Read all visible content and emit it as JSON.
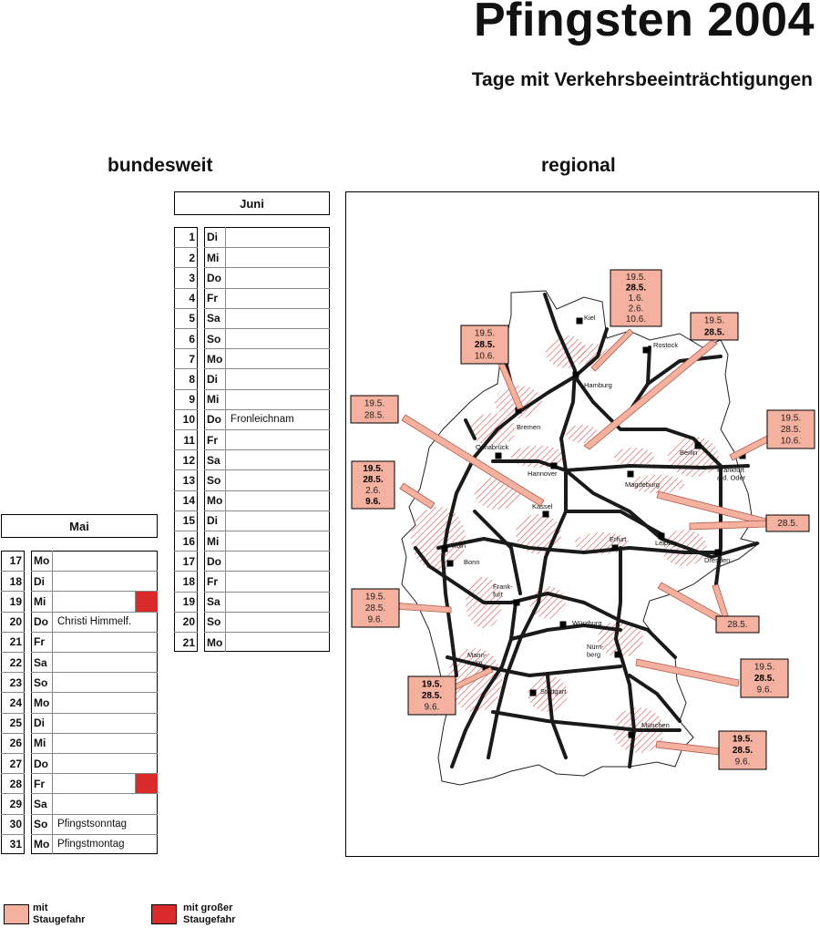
{
  "header": {
    "title": "Pfingsten 2004",
    "subtitle": "Tage mit Verkehrsbeeinträchtigungen"
  },
  "sections": {
    "national": "bundesweit",
    "regional": "regional"
  },
  "colors": {
    "jam_risk": "#f4b19f",
    "high_jam_risk": "#d92b2b",
    "hatch": "#d94a4a"
  },
  "calendar": {
    "june": {
      "month": "Juni",
      "days": [
        {
          "day": "1",
          "wd": "Di",
          "note": "",
          "risk": ""
        },
        {
          "day": "2",
          "wd": "Mi",
          "note": "",
          "risk": ""
        },
        {
          "day": "3",
          "wd": "Do",
          "note": "",
          "risk": ""
        },
        {
          "day": "4",
          "wd": "Fr",
          "note": "",
          "risk": ""
        },
        {
          "day": "5",
          "wd": "Sa",
          "note": "",
          "risk": ""
        },
        {
          "day": "6",
          "wd": "So",
          "note": "",
          "risk": ""
        },
        {
          "day": "7",
          "wd": "Mo",
          "note": "",
          "risk": ""
        },
        {
          "day": "8",
          "wd": "Di",
          "note": "",
          "risk": ""
        },
        {
          "day": "9",
          "wd": "Mi",
          "note": "",
          "risk": ""
        },
        {
          "day": "10",
          "wd": "Do",
          "note": "Fronleichnam",
          "risk": ""
        },
        {
          "day": "11",
          "wd": "Fr",
          "note": "",
          "risk": ""
        },
        {
          "day": "12",
          "wd": "Sa",
          "note": "",
          "risk": ""
        },
        {
          "day": "13",
          "wd": "So",
          "note": "",
          "risk": ""
        },
        {
          "day": "14",
          "wd": "Mo",
          "note": "",
          "risk": ""
        },
        {
          "day": "15",
          "wd": "Di",
          "note": "",
          "risk": ""
        },
        {
          "day": "16",
          "wd": "Mi",
          "note": "",
          "risk": ""
        },
        {
          "day": "17",
          "wd": "Do",
          "note": "",
          "risk": ""
        },
        {
          "day": "18",
          "wd": "Fr",
          "note": "",
          "risk": ""
        },
        {
          "day": "19",
          "wd": "Sa",
          "note": "",
          "risk": ""
        },
        {
          "day": "20",
          "wd": "So",
          "note": "",
          "risk": ""
        },
        {
          "day": "21",
          "wd": "Mo",
          "note": "",
          "risk": ""
        }
      ]
    },
    "may": {
      "month": "Mai",
      "days": [
        {
          "day": "17",
          "wd": "Mo",
          "note": "",
          "risk": ""
        },
        {
          "day": "18",
          "wd": "Di",
          "note": "",
          "risk": ""
        },
        {
          "day": "19",
          "wd": "Mi",
          "note": "",
          "risk": "high"
        },
        {
          "day": "20",
          "wd": "Do",
          "note": "Christi Himmelf.",
          "risk": ""
        },
        {
          "day": "21",
          "wd": "Fr",
          "note": "",
          "risk": ""
        },
        {
          "day": "22",
          "wd": "Sa",
          "note": "",
          "risk": ""
        },
        {
          "day": "23",
          "wd": "So",
          "note": "",
          "risk": ""
        },
        {
          "day": "24",
          "wd": "Mo",
          "note": "",
          "risk": ""
        },
        {
          "day": "25",
          "wd": "Di",
          "note": "",
          "risk": ""
        },
        {
          "day": "26",
          "wd": "Mi",
          "note": "",
          "risk": ""
        },
        {
          "day": "27",
          "wd": "Do",
          "note": "",
          "risk": ""
        },
        {
          "day": "28",
          "wd": "Fr",
          "note": "",
          "risk": "high"
        },
        {
          "day": "29",
          "wd": "Sa",
          "note": "",
          "risk": ""
        },
        {
          "day": "30",
          "wd": "So",
          "note": "Pfingstsonntag",
          "risk": ""
        },
        {
          "day": "31",
          "wd": "Mo",
          "note": "Pfingstmontag",
          "risk": ""
        }
      ]
    }
  },
  "map": {
    "cities": [
      {
        "name": "Kiel",
        "icon": "city-square"
      },
      {
        "name": "Rostock",
        "icon": "city-square"
      },
      {
        "name": "Hamburg",
        "icon": "city-square"
      },
      {
        "name": "Bremen",
        "icon": "city-square"
      },
      {
        "name": "Berlin",
        "icon": "city-square"
      },
      {
        "name": "Osnabrück",
        "icon": "city-square"
      },
      {
        "name": "Hannover",
        "icon": "city-square"
      },
      {
        "name": "Frankfurt a.d. Oder",
        "icon": "city-square"
      },
      {
        "name": "Magdeburg",
        "icon": "city-square"
      },
      {
        "name": "Kassel",
        "icon": "city-square"
      },
      {
        "name": "Köln",
        "icon": "city-square"
      },
      {
        "name": "Bonn",
        "icon": "city-square"
      },
      {
        "name": "Erfurt",
        "icon": "city-square"
      },
      {
        "name": "Leipzig",
        "icon": "city-square"
      },
      {
        "name": "Dresden",
        "icon": "city-square"
      },
      {
        "name": "Frank-furt",
        "icon": "city-square"
      },
      {
        "name": "Würzburg",
        "icon": "city-square"
      },
      {
        "name": "Nürn-berg",
        "icon": "city-square"
      },
      {
        "name": "Mann-heim",
        "icon": "city-square"
      },
      {
        "name": "Stuttgart",
        "icon": "city-square"
      },
      {
        "name": "München",
        "icon": "city-square"
      }
    ],
    "date_boxes": [
      {
        "id": "hamburg-north",
        "lines": [
          {
            "t": "19.5.",
            "b": false
          },
          {
            "t": "28.5.",
            "b": true
          },
          {
            "t": "1.6.",
            "b": false
          },
          {
            "t": "2.6.",
            "b": false
          },
          {
            "t": "10.6.",
            "b": false
          }
        ]
      },
      {
        "id": "bremen",
        "lines": [
          {
            "t": "19.5.",
            "b": false
          },
          {
            "t": "28.5.",
            "b": true
          },
          {
            "t": "10.6.",
            "b": false
          }
        ]
      },
      {
        "id": "rostock",
        "lines": [
          {
            "t": "19.5.",
            "b": false
          },
          {
            "t": "28.5.",
            "b": true
          }
        ]
      },
      {
        "id": "kassel",
        "lines": [
          {
            "t": "19.5.",
            "b": false
          },
          {
            "t": "28.5.",
            "b": false
          }
        ]
      },
      {
        "id": "frankfurt-oder",
        "lines": [
          {
            "t": "19.5.",
            "b": false
          },
          {
            "t": "28.5.",
            "b": false
          },
          {
            "t": "10.6.",
            "b": false
          }
        ]
      },
      {
        "id": "koeln",
        "lines": [
          {
            "t": "19.5.",
            "b": true
          },
          {
            "t": "28.5.",
            "b": true
          },
          {
            "t": "2.6.",
            "b": false
          },
          {
            "t": "9.6.",
            "b": true
          }
        ]
      },
      {
        "id": "leipzig",
        "lines": [
          {
            "t": "28.5.",
            "b": false
          }
        ]
      },
      {
        "id": "frankfurt-main",
        "lines": [
          {
            "t": "19.5.",
            "b": false
          },
          {
            "t": "28.5.",
            "b": false
          },
          {
            "t": "9.6.",
            "b": false
          }
        ]
      },
      {
        "id": "dresden",
        "lines": [
          {
            "t": "28.5.",
            "b": false
          }
        ]
      },
      {
        "id": "stuttgart",
        "lines": [
          {
            "t": "19.5.",
            "b": true
          },
          {
            "t": "28.5.",
            "b": true
          },
          {
            "t": "9.6.",
            "b": false
          }
        ]
      },
      {
        "id": "nuernberg",
        "lines": [
          {
            "t": "19.5.",
            "b": false
          },
          {
            "t": "28.5.",
            "b": true
          },
          {
            "t": "9.6.",
            "b": false
          }
        ]
      },
      {
        "id": "muenchen",
        "lines": [
          {
            "t": "19.5.",
            "b": true
          },
          {
            "t": "28.5.",
            "b": true
          },
          {
            "t": "9.6.",
            "b": false
          }
        ]
      }
    ]
  },
  "legend": {
    "items": [
      {
        "label": "mit\nStaugefahr",
        "level": "jam_risk"
      },
      {
        "label": "mit großer\nStaugefahr",
        "level": "high_jam_risk"
      }
    ]
  }
}
